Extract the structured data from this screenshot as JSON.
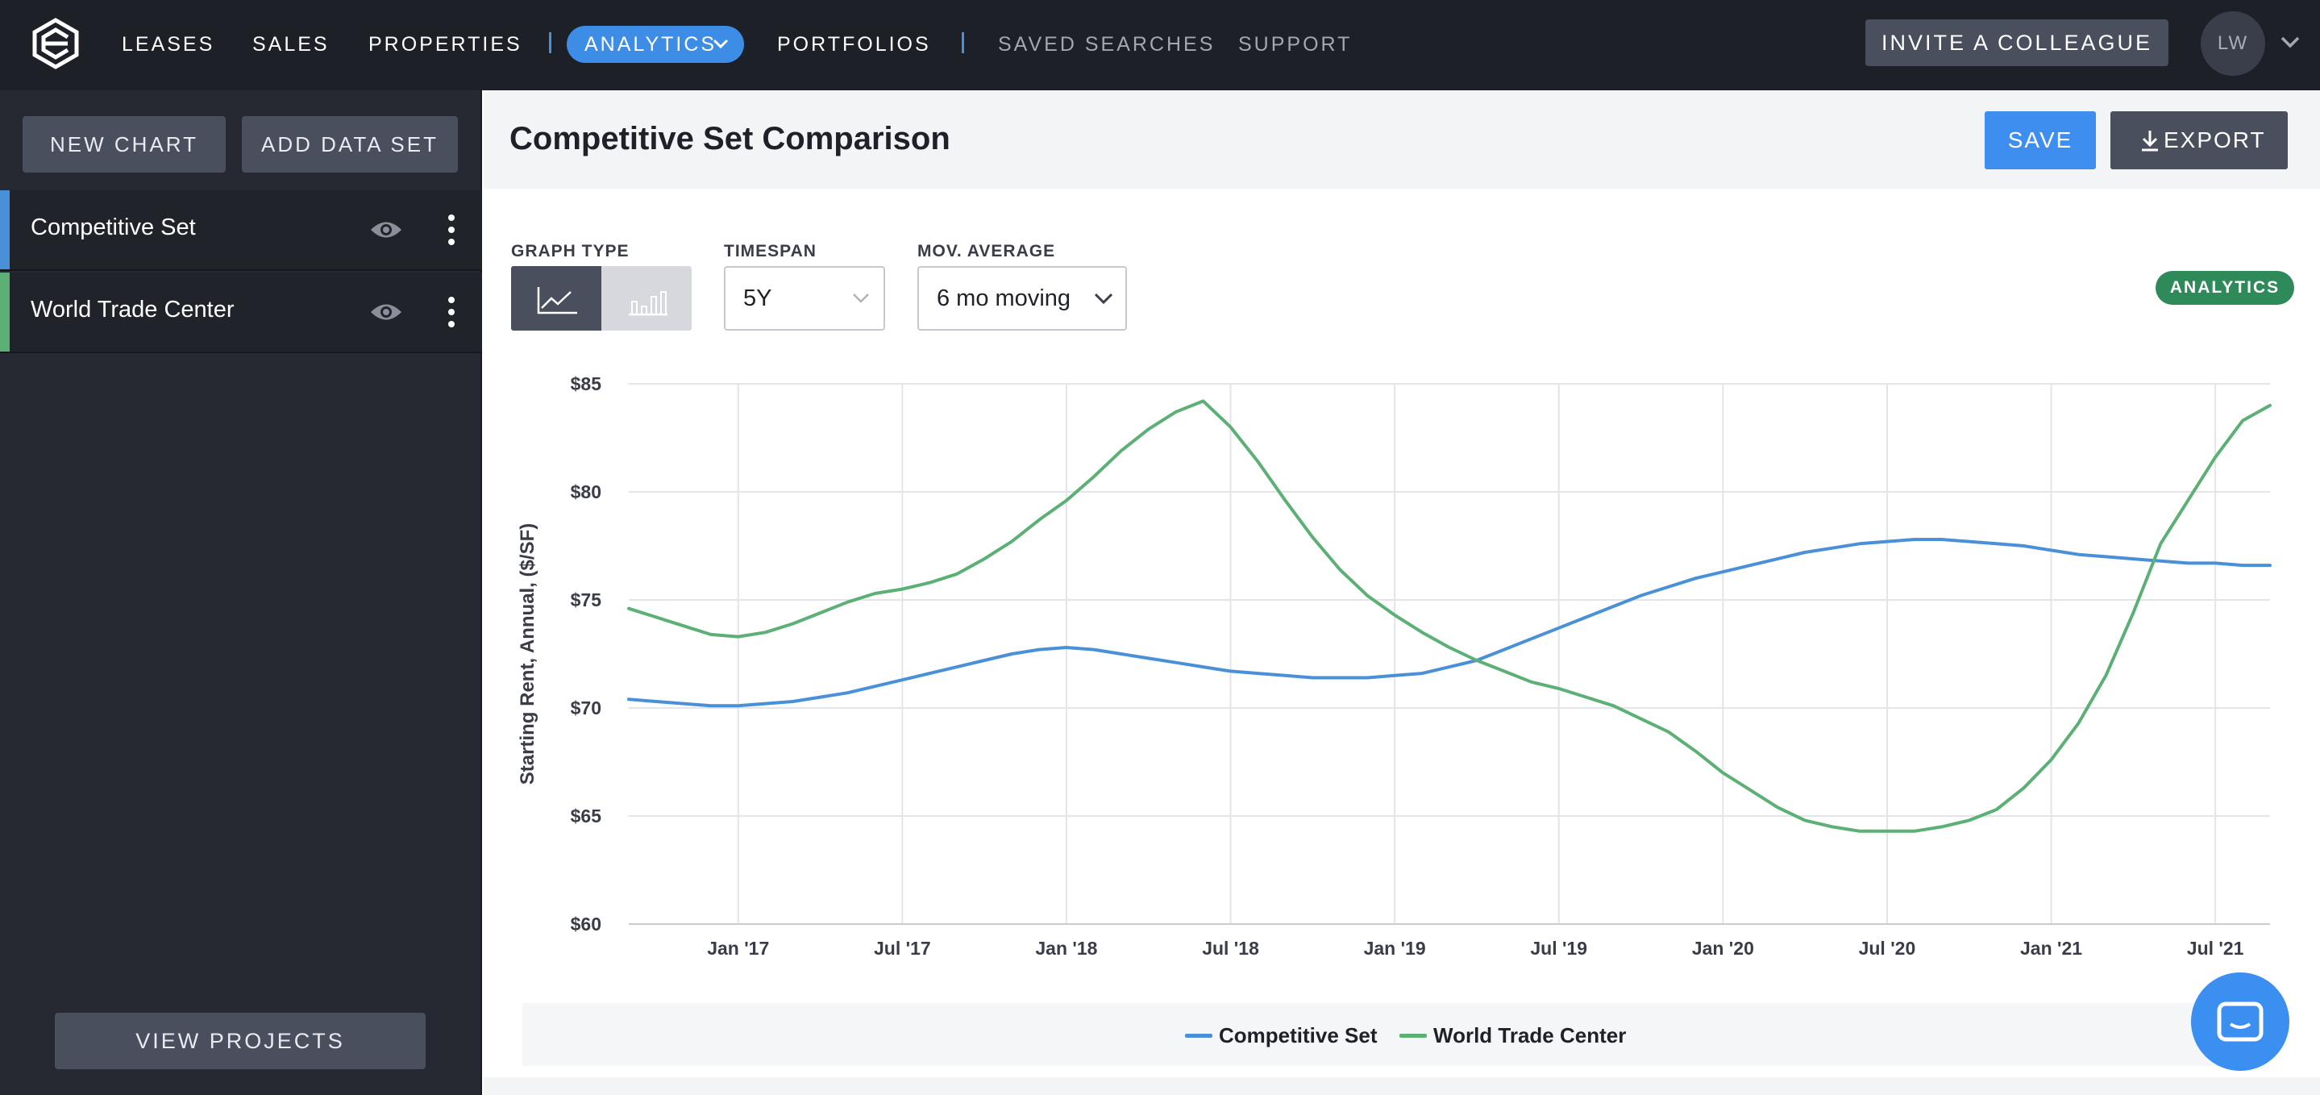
{
  "nav": {
    "items": [
      "LEASES",
      "SALES",
      "PROPERTIES"
    ],
    "active": "ANALYTICS",
    "portfolios": "PORTFOLIOS",
    "secondary": [
      "SAVED SEARCHES",
      "SUPPORT"
    ],
    "invite": "INVITE A COLLEAGUE",
    "avatar": "LW"
  },
  "sidebar": {
    "new_chart": "NEW CHART",
    "add_data_set": "ADD DATA SET",
    "datasets": [
      {
        "label": "Competitive Set",
        "color": "#4a90d9"
      },
      {
        "label": "World Trade Center",
        "color": "#5cb075"
      }
    ],
    "view_projects": "VIEW PROJECTS"
  },
  "header": {
    "title": "Competitive Set Comparison",
    "save": "SAVE",
    "export": "EXPORT"
  },
  "controls": {
    "graph_type_label": "GRAPH TYPE",
    "timespan_label": "TIMESPAN",
    "timespan_value": "5Y",
    "mov_avg_label": "MOV. AVERAGE",
    "mov_avg_value": "6 mo moving",
    "badge": "ANALYTICS"
  },
  "chart_data": {
    "type": "line",
    "ylabel": "Starting Rent, Annual, ($/SF)",
    "ylim": [
      60,
      85
    ],
    "yticks": [
      60,
      65,
      70,
      75,
      80,
      85
    ],
    "ytick_labels": [
      "$60",
      "$65",
      "$70",
      "$75",
      "$80",
      "$85"
    ],
    "xlim": [
      "2016-09",
      "2021-09"
    ],
    "xticks": [
      "2017-01",
      "2017-07",
      "2018-01",
      "2018-07",
      "2019-01",
      "2019-07",
      "2020-01",
      "2020-07",
      "2021-01",
      "2021-07"
    ],
    "xtick_labels": [
      "Jan '17",
      "Jul '17",
      "Jan '18",
      "Jul '18",
      "Jan '19",
      "Jul '19",
      "Jan '20",
      "Jul '20",
      "Jan '21",
      "Jul '21"
    ],
    "grid": true,
    "legend_position": "bottom-center",
    "series": [
      {
        "name": "Competitive Set",
        "color": "#4a90d9",
        "x": [
          "2016-09",
          "2016-10",
          "2016-11",
          "2016-12",
          "2017-01",
          "2017-02",
          "2017-03",
          "2017-04",
          "2017-05",
          "2017-06",
          "2017-07",
          "2017-08",
          "2017-09",
          "2017-10",
          "2017-11",
          "2017-12",
          "2018-01",
          "2018-02",
          "2018-03",
          "2018-04",
          "2018-05",
          "2018-06",
          "2018-07",
          "2018-08",
          "2018-09",
          "2018-10",
          "2018-11",
          "2018-12",
          "2019-01",
          "2019-02",
          "2019-03",
          "2019-04",
          "2019-05",
          "2019-06",
          "2019-07",
          "2019-08",
          "2019-09",
          "2019-10",
          "2019-11",
          "2019-12",
          "2020-01",
          "2020-02",
          "2020-03",
          "2020-04",
          "2020-05",
          "2020-06",
          "2020-07",
          "2020-08",
          "2020-09",
          "2020-10",
          "2020-11",
          "2020-12",
          "2021-01",
          "2021-02",
          "2021-03",
          "2021-04",
          "2021-05",
          "2021-06",
          "2021-07",
          "2021-08",
          "2021-09"
        ],
        "values": [
          70.4,
          70.3,
          70.2,
          70.1,
          70.1,
          70.2,
          70.3,
          70.5,
          70.7,
          71.0,
          71.3,
          71.6,
          71.9,
          72.2,
          72.5,
          72.7,
          72.8,
          72.7,
          72.5,
          72.3,
          72.1,
          71.9,
          71.7,
          71.6,
          71.5,
          71.4,
          71.4,
          71.4,
          71.5,
          71.6,
          71.9,
          72.2,
          72.7,
          73.2,
          73.7,
          74.2,
          74.7,
          75.2,
          75.6,
          76.0,
          76.3,
          76.6,
          76.9,
          77.2,
          77.4,
          77.6,
          77.7,
          77.8,
          77.8,
          77.7,
          77.6,
          77.5,
          77.3,
          77.1,
          77.0,
          76.9,
          76.8,
          76.7,
          76.7,
          76.6,
          76.6
        ]
      },
      {
        "name": "World Trade Center",
        "color": "#5cb075",
        "x": [
          "2016-09",
          "2016-10",
          "2016-11",
          "2016-12",
          "2017-01",
          "2017-02",
          "2017-03",
          "2017-04",
          "2017-05",
          "2017-06",
          "2017-07",
          "2017-08",
          "2017-09",
          "2017-10",
          "2017-11",
          "2017-12",
          "2018-01",
          "2018-02",
          "2018-03",
          "2018-04",
          "2018-05",
          "2018-06",
          "2018-07",
          "2018-08",
          "2018-09",
          "2018-10",
          "2018-11",
          "2018-12",
          "2019-01",
          "2019-02",
          "2019-03",
          "2019-04",
          "2019-05",
          "2019-06",
          "2019-07",
          "2019-08",
          "2019-09",
          "2019-10",
          "2019-11",
          "2019-12",
          "2020-01",
          "2020-02",
          "2020-03",
          "2020-04",
          "2020-05",
          "2020-06",
          "2020-07",
          "2020-08",
          "2020-09",
          "2020-10",
          "2020-11",
          "2020-12",
          "2021-01",
          "2021-02",
          "2021-03",
          "2021-04",
          "2021-05",
          "2021-06",
          "2021-07",
          "2021-08",
          "2021-09"
        ],
        "values": [
          74.6,
          74.2,
          73.8,
          73.4,
          73.3,
          73.5,
          73.9,
          74.4,
          74.9,
          75.3,
          75.5,
          75.8,
          76.2,
          76.9,
          77.7,
          78.7,
          79.6,
          80.7,
          81.9,
          82.9,
          83.7,
          84.2,
          83.0,
          81.4,
          79.6,
          77.9,
          76.4,
          75.2,
          74.3,
          73.5,
          72.8,
          72.2,
          71.7,
          71.2,
          70.9,
          70.5,
          70.1,
          69.5,
          68.9,
          68.0,
          67.0,
          66.2,
          65.4,
          64.8,
          64.5,
          64.3,
          64.3,
          64.3,
          64.5,
          64.8,
          65.3,
          66.3,
          67.6,
          69.3,
          71.5,
          74.4,
          77.6,
          79.6,
          81.6,
          83.3,
          84.0
        ]
      }
    ]
  }
}
